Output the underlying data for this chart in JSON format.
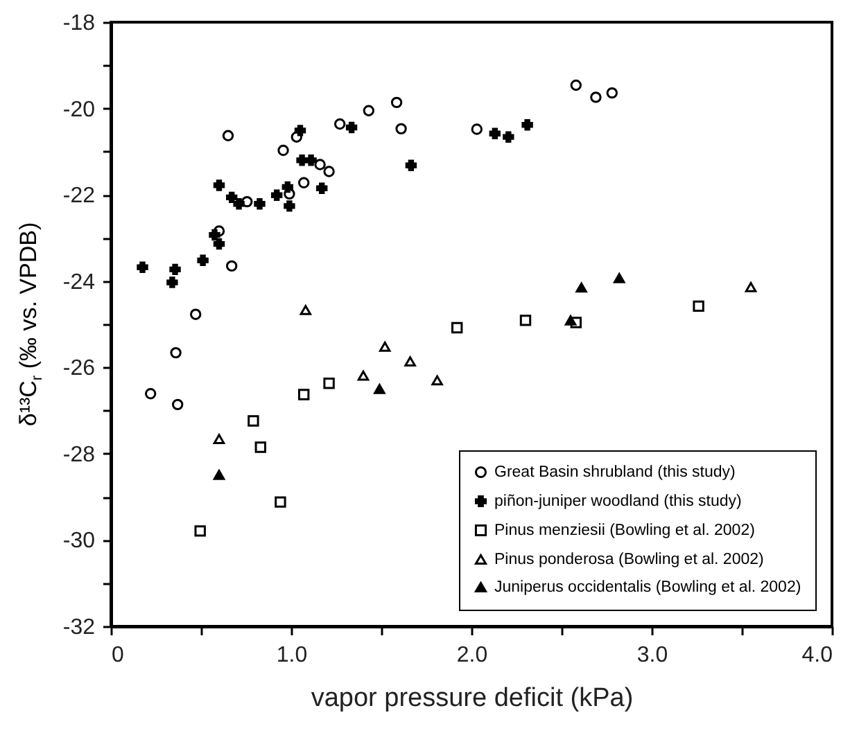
{
  "chart_data": {
    "type": "scatter",
    "xlabel": "vapor pressure deficit (kPa)",
    "ylabel": "δ¹³C$_{r}$ (‰ vs. VPDB)",
    "xlim": [
      0,
      4
    ],
    "ylim": [
      -32,
      -18
    ],
    "xticks": [
      0,
      {
        "value": 0.5,
        "label": null
      },
      {
        "value": 1,
        "label": "1.0"
      },
      {
        "value": 1.5,
        "label": null
      },
      {
        "value": 2,
        "label": "2.0"
      },
      {
        "value": 2.5,
        "label": null
      },
      {
        "value": 3,
        "label": "3.0"
      },
      {
        "value": 3.5,
        "label": null
      },
      {
        "value": 4,
        "label": "4.0"
      }
    ],
    "yticks": [
      -32,
      {
        "value": -31,
        "label": null
      },
      -30,
      {
        "value": -29,
        "label": null
      },
      -28,
      {
        "value": -27,
        "label": null
      },
      -26,
      {
        "value": -25,
        "label": null
      },
      -24,
      {
        "value": -23,
        "label": null
      },
      -22,
      {
        "value": -21,
        "label": null
      },
      -20,
      {
        "value": -19,
        "label": null
      },
      -18
    ],
    "legend": "bottom right",
    "grid": false,
    "series": [
      {
        "name": "Great Basin shrubland (this study)",
        "color": "#000000",
        "marker": "circle",
        "x": [
          0.65,
          0.47,
          0.67,
          0.6,
          0.755,
          0.956,
          0.99,
          1.03,
          1.07,
          1.16,
          1.21,
          1.27,
          1.43,
          1.585,
          1.61,
          2.03,
          2.58,
          2.69,
          2.78,
          0.36,
          0.22,
          0.37
        ],
        "values": [
          -20.63,
          -24.77,
          -23.65,
          -22.84,
          -22.16,
          -20.97,
          -21.98,
          -20.66,
          -21.72,
          -21.3,
          -21.46,
          -20.36,
          -20.05,
          -19.86,
          -20.47,
          -20.48,
          -19.46,
          -19.74,
          -19.64,
          -25.66,
          -26.61,
          -26.86
        ]
      },
      {
        "name": "piñon-juniper woodland (this study)",
        "color": "#000000",
        "marker": "cross",
        "x": [
          0.175,
          0.356,
          0.34,
          0.51,
          0.6,
          0.575,
          0.6,
          0.67,
          0.71,
          0.825,
          0.92,
          0.98,
          0.99,
          1.05,
          1.06,
          1.11,
          1.17,
          1.335,
          1.665,
          2.13,
          2.205,
          2.31
        ],
        "values": [
          -23.68,
          -23.73,
          -24.03,
          -23.52,
          -21.78,
          -22.93,
          -23.14,
          -22.06,
          -22.21,
          -22.21,
          -22.01,
          -21.82,
          -22.26,
          -20.51,
          -21.2,
          -21.2,
          -21.85,
          -20.44,
          -21.32,
          -20.58,
          -20.66,
          -20.38
        ]
      },
      {
        "name": "Pinus menziesii (Bowling et al. 2002)",
        "color": "#000000",
        "marker": "square",
        "x": [
          0.495,
          0.79,
          0.83,
          0.94,
          1.07,
          1.21,
          1.92,
          2.3,
          2.58,
          3.26
        ],
        "values": [
          -29.79,
          -27.24,
          -27.85,
          -29.12,
          -26.63,
          -26.37,
          -25.08,
          -24.91,
          -24.96,
          -24.58
        ]
      },
      {
        "name": "Pinus ponderosa (Bowling et al. 2002)",
        "color": "#000000",
        "marker": "triangle",
        "x": [
          1.08,
          0.6,
          1.4,
          1.52,
          1.66,
          1.81,
          3.55
        ],
        "values": [
          -24.67,
          -27.66,
          -26.19,
          -25.52,
          -25.86,
          -26.3,
          -24.14
        ]
      },
      {
        "name": "Juniperus occidentalis (Bowling et al. 2002)",
        "color": "#000000",
        "marker": "triangle",
        "x": [
          0.6,
          1.49,
          2.55,
          2.61,
          2.82
        ],
        "values": [
          -28.49,
          -26.5,
          -24.91,
          -24.15,
          -23.93
        ]
      }
    ]
  }
}
